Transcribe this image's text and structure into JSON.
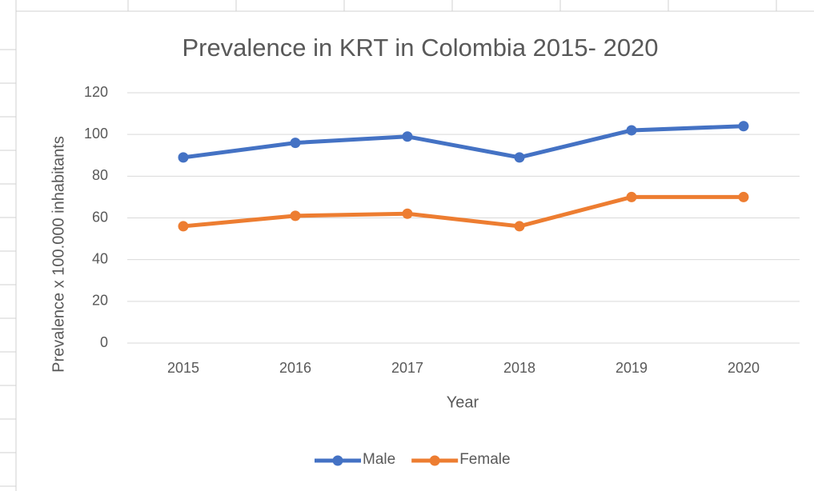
{
  "chart_data": {
    "type": "line",
    "title": "Prevalence in KRT in Colombia 2015- 2020",
    "x_label": "Year",
    "y_label": "Prevalence x 100.000 inhabitants",
    "categories": [
      "2015",
      "2016",
      "2017",
      "2018",
      "2019",
      "2020"
    ],
    "series": [
      {
        "name": "Male",
        "color": "#4472c4",
        "values": [
          89,
          96,
          99,
          89,
          102,
          104
        ]
      },
      {
        "name": "Female",
        "color": "#ed7d31",
        "values": [
          56,
          61,
          62,
          56,
          70,
          70
        ]
      }
    ],
    "ylim": [
      0,
      120
    ],
    "yticks": [
      0,
      20,
      40,
      60,
      80,
      100,
      120
    ],
    "grid": true,
    "legend": "bottom"
  }
}
